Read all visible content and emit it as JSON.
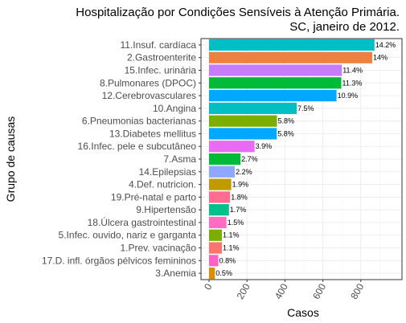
{
  "chart_data": {
    "type": "bar",
    "orientation": "horizontal",
    "title": [
      "Hospitalização por Condições Sensíveis à Atenção Primária.",
      "SC, janeiro de 2012."
    ],
    "xlabel": "Casos",
    "ylabel": "Grupo de causas",
    "xlim": [
      0,
      1000
    ],
    "xticks": [
      0,
      200,
      400,
      600,
      800
    ],
    "grid": true,
    "legend": "none",
    "categories": [
      "11.Insuf. cardíaca",
      "2.Gastroenterite",
      "15.Infec. urinária",
      "8.Pulmonares (DPOC)",
      "12.Cerebrovasculares",
      "10.Angina",
      "6.Pneumonias bacterianas",
      "13.Diabetes mellitus",
      "16.Infec. pele e subcutâneo",
      "7.Asma",
      "14.Epilepsias",
      "4.Def. nutricion.",
      "19.Pré-natal e parto",
      "9.Hipertensão",
      "18.Úlcera gastrointestinal",
      "5.Infec. ouvido, nariz e garganta",
      "1.Prev. vacinação",
      "17.D. infl. órgãos pélvicos femininos",
      "3.Anemia"
    ],
    "values": [
      872,
      860,
      700,
      697,
      672,
      462,
      358,
      357,
      240,
      166,
      136,
      117,
      111,
      105,
      92,
      68,
      68,
      49,
      31
    ],
    "labels": [
      "14.2%",
      "14%",
      "11.4%",
      "11.3%",
      "10.9%",
      "7.5%",
      "5.8%",
      "5.8%",
      "3.9%",
      "2.7%",
      "2.2%",
      "1.9%",
      "1.8%",
      "1.7%",
      "1.5%",
      "1.1%",
      "1.1%",
      "0.8%",
      "0.5%"
    ],
    "colors": [
      "#00BFC4",
      "#ED8141",
      "#C77CFF",
      "#00BA38",
      "#00A9FF",
      "#00BFC4",
      "#7CAE00",
      "#00A9FF",
      "#E76BF3",
      "#00BA38",
      "#8FA7FF",
      "#C09B00",
      "#FF6C91",
      "#00C08B",
      "#FF6CC0",
      "#7CAE00",
      "#F8766D",
      "#FF61C3",
      "#D89000"
    ]
  }
}
